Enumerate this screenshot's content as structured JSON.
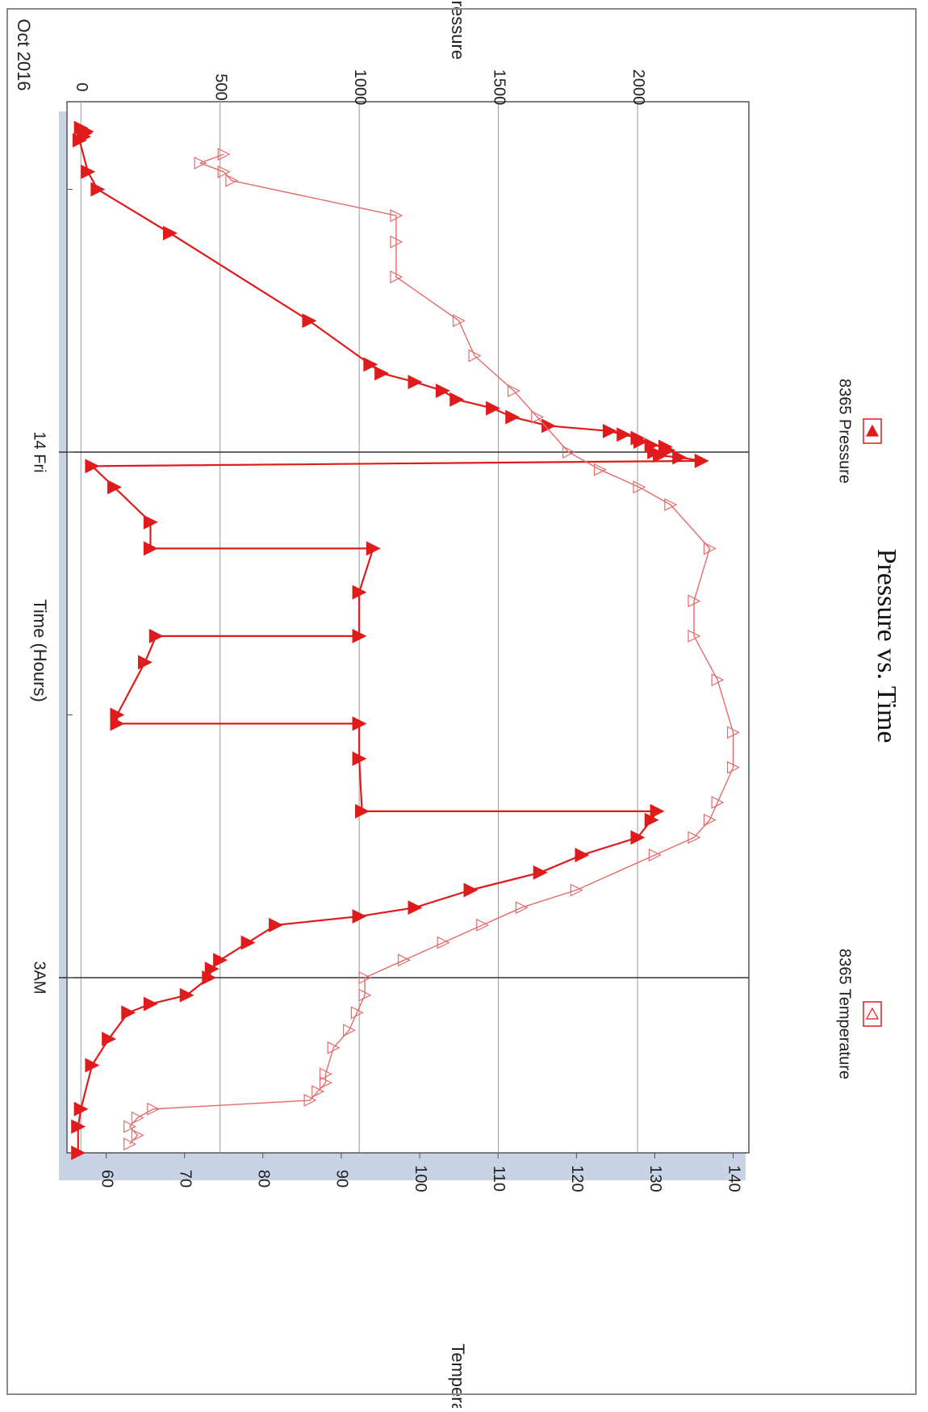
{
  "chart_data": {
    "type": "line",
    "title": "Pressure vs. Time",
    "xlabel": "Time (Hours)",
    "ylabel": "Pressure",
    "y2label": "Temperature",
    "date_label": "Oct 2016",
    "x_tick_labels": [
      {
        "x": 0,
        "label": "14 Fri"
      },
      {
        "x": 3,
        "label": "3AM"
      }
    ],
    "xlim": [
      -2.0,
      4.0
    ],
    "ylim": [
      -50,
      2400
    ],
    "y_ticks": [
      0,
      500,
      1000,
      1500,
      2000
    ],
    "y2lim": [
      55,
      142
    ],
    "y2_ticks": [
      60,
      70,
      80,
      90,
      100,
      110,
      120,
      130,
      140
    ],
    "grid": true,
    "legend": [
      "8365 Pressure",
      "8365 Temperature"
    ],
    "legend_placement": "top",
    "colors": {
      "pressure": "#e01b1b",
      "temperature": "#e36b6b",
      "frame": "#555555",
      "grid": "#999999",
      "backdrop": "#c9d3e6"
    },
    "series": [
      {
        "name": "8365 Pressure",
        "axis": "left",
        "marker": "filled-triangle",
        "x": [
          -1.85,
          -1.83,
          -1.82,
          -1.8,
          -1.78,
          -1.6,
          -1.5,
          -1.25,
          -0.75,
          -0.5,
          -0.45,
          -0.4,
          -0.35,
          -0.3,
          -0.25,
          -0.2,
          -0.15,
          -0.12,
          -0.1,
          -0.08,
          -0.06,
          -0.04,
          -0.03,
          -0.01,
          0.0,
          0.02,
          0.03,
          0.05,
          0.08,
          0.2,
          0.4,
          0.55,
          0.55,
          0.8,
          1.05,
          1.05,
          1.2,
          1.5,
          1.55,
          1.55,
          1.75,
          2.05,
          2.05,
          2.1,
          2.2,
          2.3,
          2.4,
          2.5,
          2.6,
          2.65,
          2.7,
          2.8,
          2.9,
          2.95,
          3.0,
          3.1,
          3.15,
          3.2,
          3.35,
          3.5,
          3.75,
          3.85,
          4.0
        ],
        "values": [
          0,
          20,
          15,
          10,
          -5,
          25,
          60,
          320,
          820,
          1040,
          1080,
          1200,
          1300,
          1350,
          1480,
          1550,
          1680,
          1900,
          1950,
          2000,
          2010,
          2050,
          2100,
          2110,
          2060,
          2080,
          2150,
          2230,
          40,
          120,
          250,
          250,
          1050,
          1000,
          1000,
          270,
          230,
          130,
          130,
          1000,
          1000,
          1010,
          2070,
          2050,
          2000,
          1800,
          1650,
          1400,
          1200,
          1000,
          700,
          600,
          500,
          470,
          460,
          380,
          250,
          170,
          100,
          40,
          0,
          -10,
          -10
        ]
      },
      {
        "name": "8365 Temperature",
        "axis": "right",
        "marker": "hollow-triangle",
        "x": [
          -1.7,
          -1.65,
          -1.6,
          -1.55,
          -1.35,
          -1.2,
          -1.0,
          -0.75,
          -0.55,
          -0.35,
          -0.2,
          0.0,
          0.1,
          0.2,
          0.3,
          0.55,
          0.85,
          1.05,
          1.3,
          1.6,
          1.8,
          2.0,
          2.1,
          2.2,
          2.3,
          2.5,
          2.6,
          2.7,
          2.8,
          2.9,
          3.0,
          3.1,
          3.2,
          3.3,
          3.4,
          3.55,
          3.6,
          3.65,
          3.7,
          3.75,
          3.8,
          3.85,
          3.9,
          3.95
        ],
        "values": [
          75,
          72,
          75,
          76,
          97,
          97,
          97,
          105,
          107,
          112,
          115,
          119,
          123,
          128,
          132,
          137,
          135,
          135,
          138,
          140,
          140,
          138,
          137,
          135,
          130,
          120,
          113,
          108,
          103,
          98,
          93,
          93,
          92,
          91,
          89,
          88,
          88,
          87,
          86,
          66,
          64,
          63,
          64,
          63
        ]
      }
    ]
  }
}
